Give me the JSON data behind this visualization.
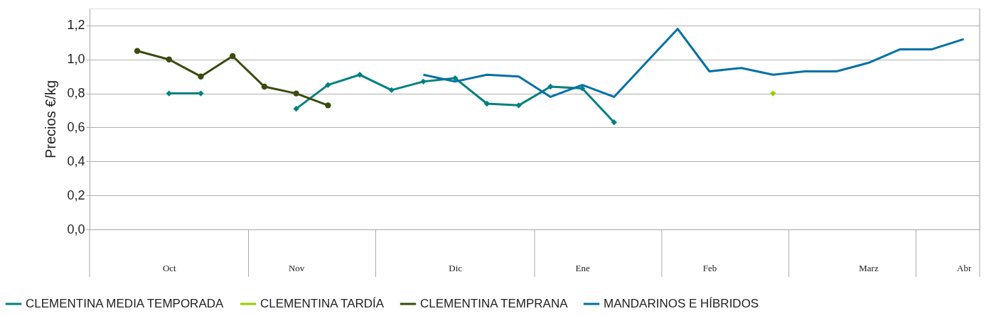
{
  "chart_data": {
    "type": "line",
    "ylabel": "Precios €/kg",
    "categories": [
      null,
      null,
      "Oct",
      null,
      null,
      null,
      "Nov",
      null,
      null,
      null,
      null,
      "Dic",
      null,
      null,
      null,
      "Ene",
      null,
      null,
      null,
      "Feb",
      null,
      null,
      null,
      null,
      "Marz",
      null,
      null,
      "Abr"
    ],
    "ylim": [
      0,
      1.3
    ],
    "yticks": [
      {
        "value": 0,
        "label": "0,0"
      },
      {
        "value": 0.2,
        "label": "0,2"
      },
      {
        "value": 0.4,
        "label": "0,4"
      },
      {
        "value": 0.6,
        "label": "0,6"
      },
      {
        "value": 0.8,
        "label": "0,8"
      },
      {
        "value": 1.0,
        "label": "1,0"
      },
      {
        "value": 1.2,
        "label": "1,2"
      }
    ],
    "grid": "y",
    "legend": "bottom",
    "line_style": "solid",
    "series": [
      {
        "name": "CLEMENTINA MEDIA TEMPORADA",
        "color": "#008080",
        "marker": "diamond",
        "values": [
          null,
          null,
          0.8,
          0.8,
          null,
          null,
          0.71,
          0.85,
          0.91,
          0.82,
          0.87,
          0.89,
          0.74,
          0.73,
          0.84,
          0.83,
          0.63,
          null,
          null,
          null,
          null,
          null,
          null,
          null,
          null,
          null,
          null,
          null
        ]
      },
      {
        "name": "CLEMENTINA TARDÍA",
        "color": "#99cc00",
        "marker": "diamond",
        "values": [
          null,
          null,
          null,
          null,
          null,
          null,
          null,
          null,
          null,
          null,
          null,
          null,
          null,
          null,
          null,
          null,
          null,
          null,
          null,
          null,
          null,
          0.8,
          null,
          null,
          null,
          null,
          null,
          null
        ]
      },
      {
        "name": "CLEMENTINA TEMPRANA",
        "color": "#3b4a0f",
        "marker": "circle",
        "values": [
          null,
          1.05,
          1.0,
          0.9,
          1.02,
          0.84,
          0.8,
          0.73,
          null,
          null,
          null,
          null,
          null,
          null,
          null,
          null,
          null,
          null,
          null,
          null,
          null,
          null,
          null,
          null,
          null,
          null,
          null,
          null
        ]
      },
      {
        "name": "MANDARINOS E HÍBRIDOS",
        "color": "#0070a8",
        "marker": "none",
        "values": [
          null,
          null,
          null,
          null,
          null,
          null,
          null,
          null,
          null,
          null,
          0.91,
          0.87,
          0.91,
          0.9,
          0.78,
          0.85,
          0.78,
          0.98,
          1.18,
          0.93,
          0.95,
          0.91,
          0.93,
          0.93,
          0.98,
          1.06,
          1.06,
          1.12
        ]
      }
    ]
  }
}
